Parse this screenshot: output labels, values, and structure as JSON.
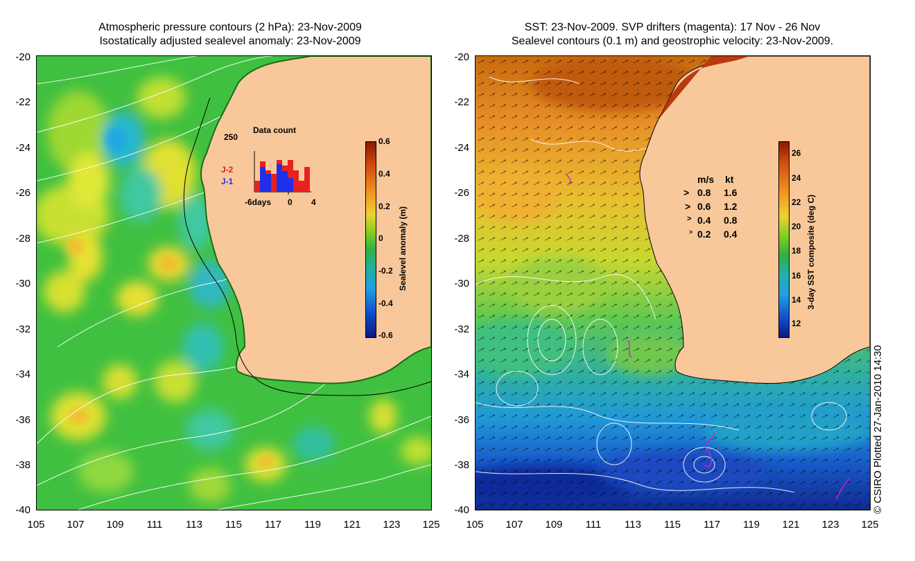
{
  "left": {
    "title_line1": "Atmospheric pressure contours (2 hPa): 23-Nov-2009",
    "title_line2": "Isostatically adjusted sealevel anomaly: 23-Nov-2009",
    "y_ticks": [
      "-20",
      "-22",
      "-24",
      "-26",
      "-28",
      "-30",
      "-32",
      "-34",
      "-36",
      "-38",
      "-40"
    ],
    "x_ticks": [
      "105",
      "107",
      "109",
      "111",
      "113",
      "115",
      "117",
      "119",
      "121",
      "123",
      "125"
    ],
    "colorbar": {
      "label": "Sealevel anomaly (m)",
      "ticks": [
        "0.6",
        "0.4",
        "0.2",
        "0",
        "-0.2",
        "-0.4",
        "-0.6"
      ]
    },
    "data_count": {
      "title": "Data count",
      "ymax": "250",
      "x_labels": [
        "-6days",
        "0",
        "4"
      ],
      "series_j2": "J-2",
      "series_j1": "J-1",
      "j2_color": "#e82020",
      "j1_color": "#2030e8"
    }
  },
  "right": {
    "title_line1": "SST: 23-Nov-2009. SVP drifters (magenta): 17 Nov - 26 Nov",
    "title_line2": "Sealevel contours (0.1 m) and geostrophic velocity: 23-Nov-2009.",
    "y_ticks": [
      "-20",
      "-22",
      "-24",
      "-26",
      "-28",
      "-30",
      "-32",
      "-34",
      "-36",
      "-38",
      "-40"
    ],
    "x_ticks": [
      "105",
      "107",
      "109",
      "111",
      "113",
      "115",
      "117",
      "119",
      "121",
      "123",
      "125"
    ],
    "colorbar": {
      "label": "3-day SST composite (deg C)",
      "ticks": [
        "26",
        "24",
        "22",
        "20",
        "18",
        "16",
        "14",
        "12"
      ]
    },
    "velocity_legend": {
      "header_ms": "m/s",
      "header_kt": "kt",
      "rows": [
        {
          "ms": "0.8",
          "kt": "1.6"
        },
        {
          "ms": "0.6",
          "kt": "1.2"
        },
        {
          "ms": "0.4",
          "kt": "0.8"
        },
        {
          "ms": "0.2",
          "kt": "0.4"
        }
      ]
    }
  },
  "copyright": "© CSIRO Plotted 27-Jan-2010 14:30",
  "colors": {
    "land": "#f8c89a",
    "ocean_green": "#3cc040",
    "coast": "#1a6a1a",
    "contour": "#ffffff",
    "drifter": "#d020d0"
  }
}
